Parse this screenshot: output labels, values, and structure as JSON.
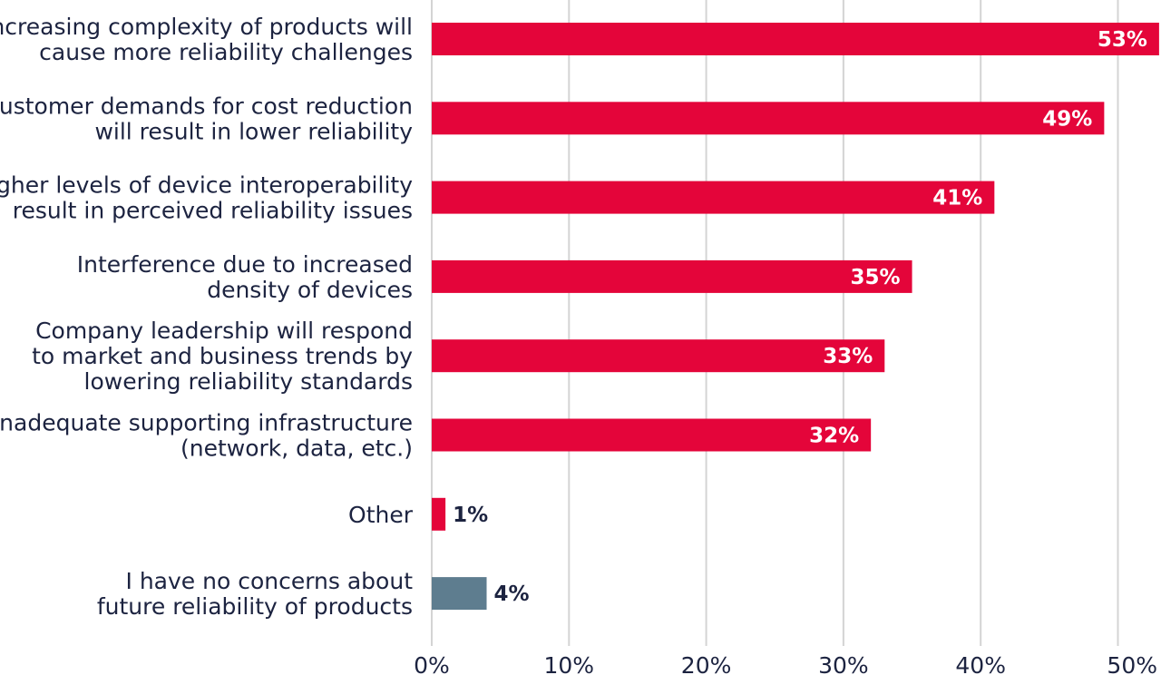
{
  "chart_data": {
    "type": "bar",
    "orientation": "horizontal",
    "categories": [
      [
        "Increasing complexity of products will",
        "cause more reliability challenges"
      ],
      [
        "Customer demands for cost reduction",
        "will result in lower reliability"
      ],
      [
        "Higher levels of device interoperability",
        "result in perceived reliability issues"
      ],
      [
        "Interference due to increased",
        "density of devices"
      ],
      [
        "Company leadership will respond",
        "to market and business trends by",
        "lowering reliability standards"
      ],
      [
        "Inadequate supporting infrastructure",
        "(network, data, etc.)"
      ],
      [
        "Other"
      ],
      [
        "I have no concerns about",
        "future reliability of products"
      ]
    ],
    "values": [
      53,
      49,
      41,
      35,
      33,
      32,
      1,
      4
    ],
    "value_labels": [
      "53%",
      "49%",
      "41%",
      "35%",
      "33%",
      "32%",
      "1%",
      "4%"
    ],
    "bar_colors": [
      "#e4053a",
      "#e4053a",
      "#e4053a",
      "#e4053a",
      "#e4053a",
      "#e4053a",
      "#e4053a",
      "#5e7d8f"
    ],
    "x_ticks": [
      0,
      10,
      20,
      30,
      40,
      50
    ],
    "x_tick_labels": [
      "0%",
      "10%",
      "20%",
      "30%",
      "40%",
      "50%"
    ],
    "xlim": [
      0,
      53
    ],
    "grid": true,
    "grid_color": "#d4d4d4",
    "label_color": "#1c2340",
    "title": "",
    "xlabel": "",
    "ylabel": ""
  }
}
